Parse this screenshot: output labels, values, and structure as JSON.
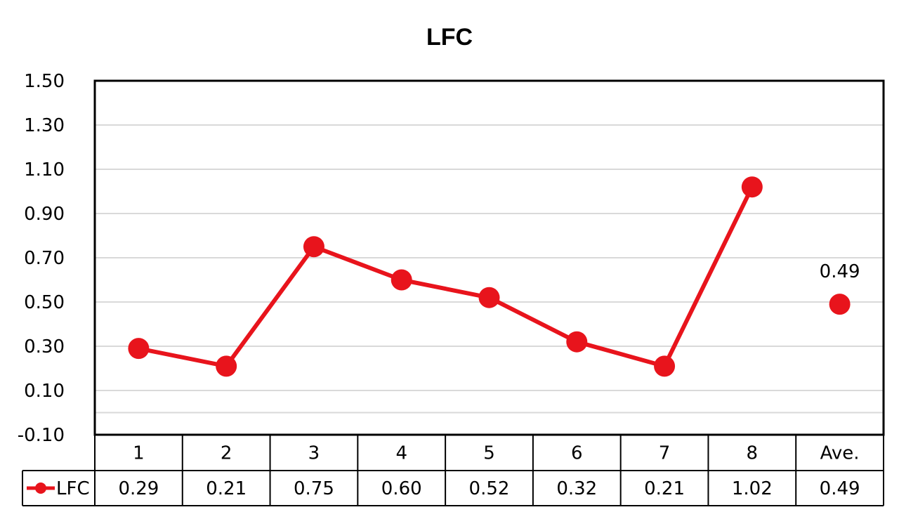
{
  "chart_data": {
    "type": "line",
    "title": "LFC",
    "categories": [
      "1",
      "2",
      "3",
      "4",
      "5",
      "6",
      "7",
      "8",
      "Ave."
    ],
    "series": [
      {
        "name": "LFC",
        "values": [
          0.29,
          0.21,
          0.75,
          0.6,
          0.52,
          0.32,
          0.21,
          1.02,
          null
        ],
        "color": "#e8141c"
      }
    ],
    "average": {
      "category": "Ave.",
      "value": 0.49,
      "label": "0.49",
      "color": "#e8141c"
    },
    "table_values": [
      "0.29",
      "0.21",
      "0.75",
      "0.60",
      "0.52",
      "0.32",
      "0.21",
      "1.02",
      "0.49"
    ],
    "legend_label": "LFC",
    "ylim": [
      -0.1,
      1.5
    ],
    "yticks": [
      "1.50",
      "1.30",
      "1.10",
      "0.90",
      "0.70",
      "0.50",
      "0.30",
      "0.10",
      "-0.10"
    ],
    "ytick_values": [
      1.5,
      1.3,
      1.1,
      0.9,
      0.7,
      0.5,
      0.3,
      0.1,
      -0.1
    ],
    "grid": true,
    "grid_color": "#d9d9d9",
    "legend_position": "data-table"
  }
}
